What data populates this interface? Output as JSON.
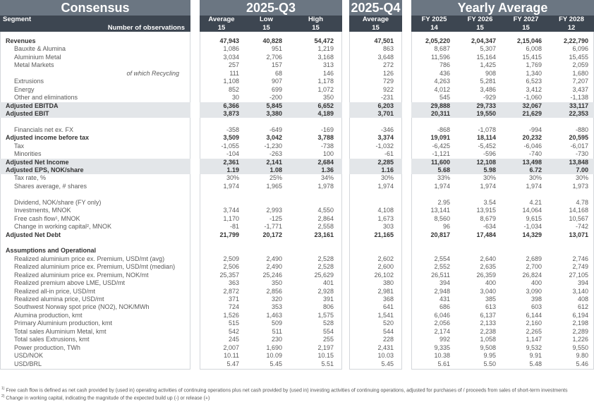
{
  "header": {
    "consensus": "Consensus",
    "q3": "2025-Q3",
    "q4": "2025-Q4",
    "yearly": "Yearly Average",
    "segment_label": "Segment",
    "observations_label": "Number of observations",
    "columns": [
      {
        "label": "Average",
        "n": "15"
      },
      {
        "label": "Low",
        "n": "15"
      },
      {
        "label": "High",
        "n": "15"
      },
      {
        "label": "Average",
        "n": "15"
      },
      {
        "label": "FY 2025",
        "n": "14"
      },
      {
        "label": "FY 2026",
        "n": "15"
      },
      {
        "label": "FY 2027",
        "n": "15"
      },
      {
        "label": "FY 2028",
        "n": "12"
      }
    ]
  },
  "rows": [
    {
      "label": "Revenues",
      "type": "bold",
      "values": [
        "47,943",
        "40,828",
        "54,472",
        "47,501",
        "2,05,220",
        "2,04,347",
        "2,15,046",
        "2,22,790"
      ]
    },
    {
      "label": "Bauxite & Alumina",
      "type": "normal",
      "values": [
        "1,086",
        "951",
        "1,219",
        "863",
        "8,687",
        "5,307",
        "6,008",
        "6,096"
      ]
    },
    {
      "label": "Aluminium Metal",
      "type": "normal",
      "values": [
        "3,034",
        "2,706",
        "3,168",
        "3,648",
        "11,596",
        "15,164",
        "15,415",
        "15,455"
      ]
    },
    {
      "label": "Metal Markets",
      "type": "normal",
      "values": [
        "257",
        "157",
        "313",
        "272",
        "786",
        "1,425",
        "1,769",
        "2,059"
      ]
    },
    {
      "label": "of which Recycling",
      "type": "italic",
      "values": [
        "111",
        "68",
        "146",
        "126",
        "436",
        "908",
        "1,340",
        "1,680"
      ]
    },
    {
      "label": "Extrusions",
      "type": "normal",
      "values": [
        "1,108",
        "907",
        "1,178",
        "729",
        "4,263",
        "5,281",
        "6,523",
        "7,207"
      ]
    },
    {
      "label": "Energy",
      "type": "normal",
      "values": [
        "852",
        "699",
        "1,072",
        "922",
        "4,012",
        "3,486",
        "3,412",
        "3,437"
      ]
    },
    {
      "label": "Other and eliminations",
      "type": "normal",
      "values": [
        "30",
        "-200",
        "350",
        "-231",
        "545",
        "-929",
        "-1,060",
        "-1,138"
      ]
    },
    {
      "label": "Adjusted EBITDA",
      "type": "bold shaded",
      "values": [
        "6,366",
        "5,845",
        "6,652",
        "6,203",
        "29,888",
        "29,733",
        "32,067",
        "33,117"
      ]
    },
    {
      "label": "Adjusted EBIT",
      "type": "bold shaded",
      "values": [
        "3,873",
        "3,380",
        "4,189",
        "3,701",
        "20,311",
        "19,550",
        "21,629",
        "22,353"
      ]
    },
    {
      "label": "",
      "type": "blank",
      "values": []
    },
    {
      "label": "Financials net ex. FX",
      "type": "normal",
      "values": [
        "-358",
        "-649",
        "-169",
        "-346",
        "-868",
        "-1,078",
        "-994",
        "-880"
      ]
    },
    {
      "label": "Adjusted income before tax",
      "type": "bold",
      "values": [
        "3,509",
        "3,042",
        "3,788",
        "3,374",
        "19,091",
        "18,114",
        "20,232",
        "20,595"
      ]
    },
    {
      "label": "Tax",
      "type": "normal",
      "values": [
        "-1,055",
        "-1,230",
        "-738",
        "-1,032",
        "-6,425",
        "-5,452",
        "-6,046",
        "-6,017"
      ]
    },
    {
      "label": "Minorities",
      "type": "normal",
      "values": [
        "-104",
        "-263",
        "100",
        "-61",
        "-1,121",
        "-596",
        "-740",
        "-730"
      ]
    },
    {
      "label": "Adjusted Net Income",
      "type": "bold shaded",
      "values": [
        "2,361",
        "2,141",
        "2,684",
        "2,285",
        "11,600",
        "12,108",
        "13,498",
        "13,848"
      ]
    },
    {
      "label": "Adjusted EPS, NOK/share",
      "type": "bold shaded",
      "values": [
        "1.19",
        "1.08",
        "1.36",
        "1.16",
        "5.68",
        "5.98",
        "6.72",
        "7.00"
      ]
    },
    {
      "label": "Tax rate, %",
      "type": "normal",
      "values": [
        "30%",
        "25%",
        "34%",
        "30%",
        "33%",
        "30%",
        "30%",
        "30%"
      ]
    },
    {
      "label": "Shares average, # shares",
      "type": "normal",
      "values": [
        "1,974",
        "1,965",
        "1,978",
        "1,974",
        "1,974",
        "1,974",
        "1,974",
        "1,973"
      ]
    },
    {
      "label": "",
      "type": "blank",
      "values": []
    },
    {
      "label": "Dividend, NOK/share (FY only)",
      "type": "normal",
      "values": [
        "",
        "",
        "",
        "",
        "2.95",
        "3.54",
        "4.21",
        "4.78"
      ]
    },
    {
      "label": "Investments, MNOK",
      "type": "normal",
      "values": [
        "3,744",
        "2,993",
        "4,550",
        "4,108",
        "13,141",
        "13,915",
        "14,064",
        "14,168"
      ]
    },
    {
      "label": "Free cash flow¹, MNOK",
      "type": "normal",
      "values": [
        "1,170",
        "-125",
        "2,864",
        "1,673",
        "8,560",
        "8,679",
        "9,615",
        "10,567"
      ]
    },
    {
      "label": "Change in working capital², MNOK",
      "type": "normal",
      "values": [
        "-81",
        "-1,771",
        "2,558",
        "303",
        "96",
        "-634",
        "-1,034",
        "-742"
      ]
    },
    {
      "label": "Adjusted Net Debt",
      "type": "bold netdebt",
      "values": [
        "21,799",
        "20,172",
        "23,161",
        "21,165",
        "20,817",
        "17,484",
        "14,329",
        "13,071"
      ]
    },
    {
      "label": "",
      "type": "blank",
      "values": []
    },
    {
      "label": "Assumptions and Operational",
      "type": "section",
      "values": []
    },
    {
      "label": "Realized aluminium price ex. Premium, USD/mt (avg)",
      "type": "normal",
      "values": [
        "2,509",
        "2,490",
        "2,528",
        "2,602",
        "2,554",
        "2,640",
        "2,689",
        "2,746"
      ]
    },
    {
      "label": "Realized aluminium price ex. Premium, USD/mt (median)",
      "type": "normal",
      "values": [
        "2,506",
        "2,490",
        "2,528",
        "2,600",
        "2,552",
        "2,635",
        "2,700",
        "2,749"
      ]
    },
    {
      "label": "Realized aluminium price ex. Premium, NOK/mt",
      "type": "normal",
      "values": [
        "25,357",
        "25,246",
        "25,629",
        "26,102",
        "26,511",
        "26,359",
        "26,824",
        "27,105"
      ]
    },
    {
      "label": "Realized premium above LME, USD/mt",
      "type": "normal",
      "values": [
        "363",
        "350",
        "401",
        "380",
        "394",
        "400",
        "400",
        "394"
      ]
    },
    {
      "label": "Realized all-in price, USD/mt",
      "type": "normal",
      "values": [
        "2,872",
        "2,856",
        "2,928",
        "2,981",
        "2,948",
        "3,040",
        "3,090",
        "3,140"
      ]
    },
    {
      "label": "Realized alumina price, USD/mt",
      "type": "normal",
      "values": [
        "371",
        "320",
        "391",
        "368",
        "431",
        "385",
        "398",
        "408"
      ]
    },
    {
      "label": "Southwest Norway spot price (NO2), NOK/MWh",
      "type": "normal",
      "values": [
        "724",
        "353",
        "806",
        "641",
        "686",
        "613",
        "603",
        "612"
      ]
    },
    {
      "label": "Alumina production, kmt",
      "type": "normal",
      "values": [
        "1,526",
        "1,463",
        "1,575",
        "1,541",
        "6,046",
        "6,137",
        "6,144",
        "6,194"
      ]
    },
    {
      "label": "Primary Aluminium production, kmt",
      "type": "normal",
      "values": [
        "515",
        "509",
        "528",
        "520",
        "2,056",
        "2,133",
        "2,160",
        "2,198"
      ]
    },
    {
      "label": "Total sales Aluminium Metal, kmt",
      "type": "normal",
      "values": [
        "542",
        "511",
        "554",
        "544",
        "2,174",
        "2,238",
        "2,265",
        "2,289"
      ]
    },
    {
      "label": "Total sales Extrusions, kmt",
      "type": "normal",
      "values": [
        "245",
        "230",
        "255",
        "228",
        "992",
        "1,058",
        "1,147",
        "1,226"
      ]
    },
    {
      "label": "Power production, TWh",
      "type": "normal",
      "values": [
        "2,007",
        "1,690",
        "2,197",
        "2,431",
        "9,335",
        "9,508",
        "9,532",
        "9,550"
      ]
    },
    {
      "label": "USD/NOK",
      "type": "normal",
      "values": [
        "10.11",
        "10.09",
        "10.15",
        "10.03",
        "10.38",
        "9.95",
        "9.91",
        "9.80"
      ]
    },
    {
      "label": "USD/BRL",
      "type": "normal",
      "values": [
        "5.47",
        "5.45",
        "5.51",
        "5.45",
        "5.61",
        "5.50",
        "5.48",
        "5.46"
      ]
    }
  ],
  "footnotes": [
    {
      "mark": "1)",
      "text": "Free cash flow is defined as net cash provided by (used in) operating activities of continuing operations plus net cash provided by (used in) investing activities of continuing operations, adjusted for purchases of / proceeds from sales of short-term investments"
    },
    {
      "mark": "2)",
      "text": "Change in working capital, indicating the magnitude of the expected build up (-) or release (+)"
    }
  ],
  "colors": {
    "title_bar": "#6b7682",
    "subheader": "#3d4651",
    "shaded_row": "#e3e6e9"
  }
}
